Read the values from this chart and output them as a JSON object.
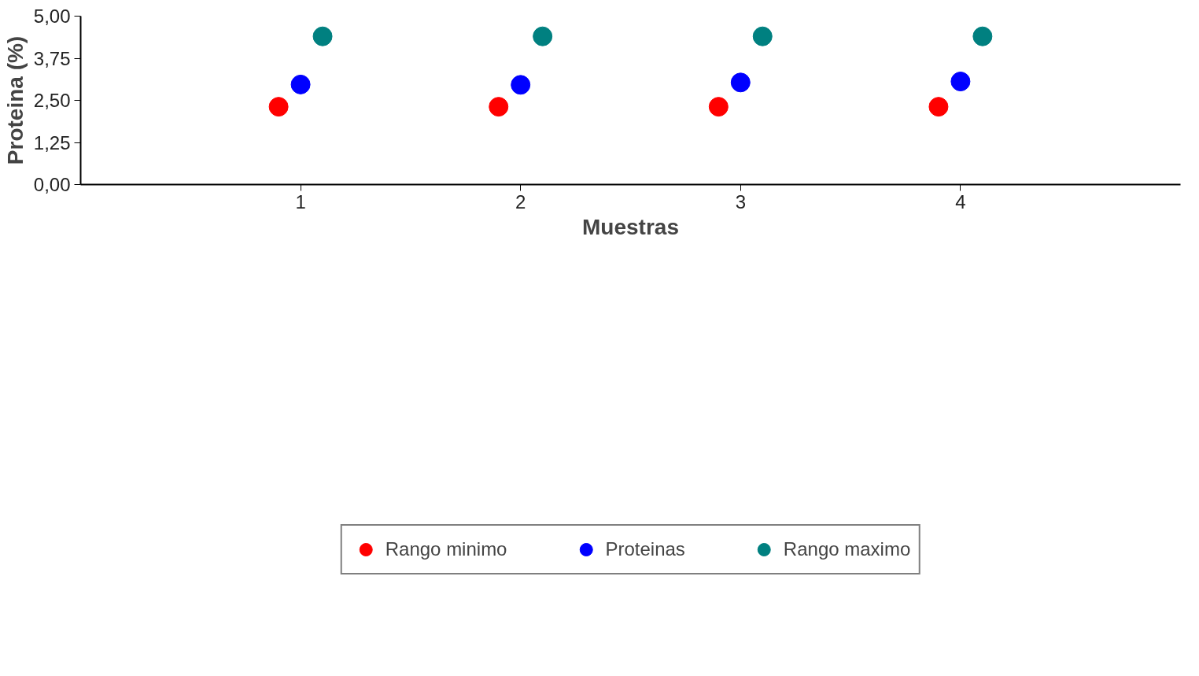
{
  "chart_data": {
    "type": "scatter",
    "xlabel": "Muestras",
    "ylabel": "Proteina (%)",
    "xlim": [
      0,
      5
    ],
    "xticks": [
      1,
      2,
      3,
      4
    ],
    "ylim": [
      0,
      5
    ],
    "yticks": [
      {
        "value": 0,
        "label": "0,00"
      },
      {
        "value": 1.25,
        "label": "1,25"
      },
      {
        "value": 2.5,
        "label": "2,50"
      },
      {
        "value": 3.75,
        "label": "3,75"
      },
      {
        "value": 5,
        "label": "5,00"
      }
    ],
    "series": [
      {
        "name": "Rango minimo",
        "color": "#ff0000",
        "x": [
          0.9,
          1.9,
          2.9,
          3.9
        ],
        "values": [
          2.31,
          2.31,
          2.31,
          2.31
        ]
      },
      {
        "name": "Proteinas",
        "color": "#0000ff",
        "x": [
          1,
          2,
          3,
          4
        ],
        "values": [
          2.97,
          2.96,
          3.03,
          3.06
        ]
      },
      {
        "name": "Rango maximo",
        "color": "#008080",
        "x": [
          1.1,
          2.1,
          3.1,
          4.1
        ],
        "values": [
          4.4,
          4.4,
          4.4,
          4.4
        ]
      }
    ],
    "marker": "circle",
    "grid": false,
    "legend": "bottom"
  }
}
